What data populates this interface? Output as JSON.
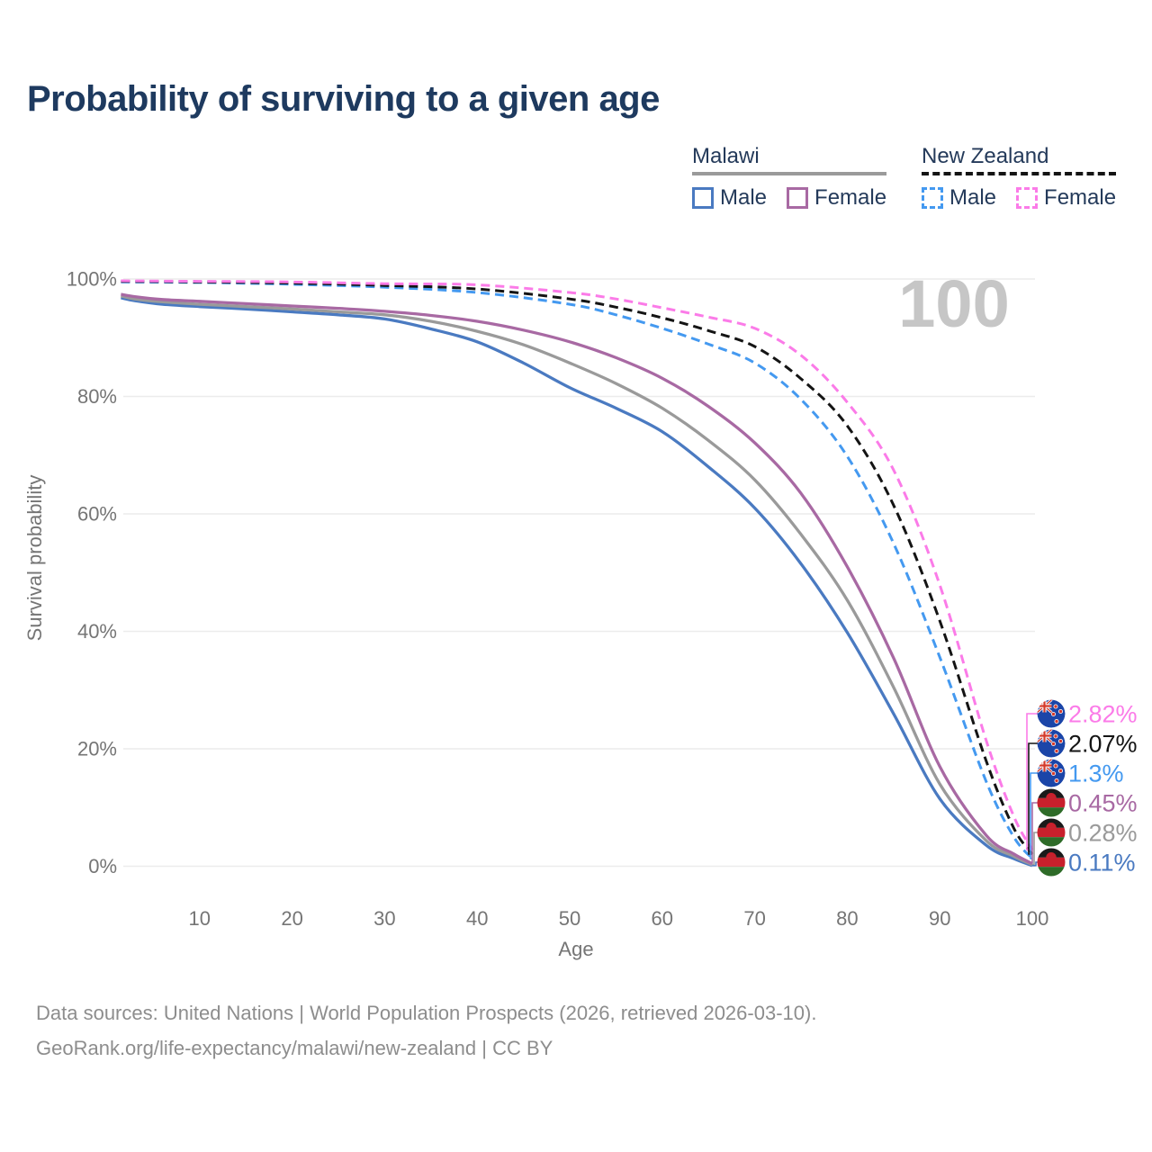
{
  "title": "Probability of surviving to a given age",
  "watermark": "100",
  "colors": {
    "title": "#1e3a5f",
    "legend_text": "#243a5a",
    "axis_text": "#757575",
    "grid": "#ececec",
    "watermark": "#c6c6c6",
    "footer_text": "#8d8d8d"
  },
  "legend": {
    "groups": [
      {
        "label": "Malawi",
        "underline": "solid",
        "underline_color": "#9a9a9a",
        "items": [
          {
            "label": "Male",
            "color": "#4a7ac1",
            "dashed": false
          },
          {
            "label": "Female",
            "color": "#a869a3",
            "dashed": false
          }
        ]
      },
      {
        "label": "New Zealand",
        "underline": "dashed",
        "underline_color": "#141414",
        "items": [
          {
            "label": "Male",
            "color": "#4499f0",
            "dashed": true
          },
          {
            "label": "Female",
            "color": "#fb7be8",
            "dashed": true
          }
        ]
      }
    ]
  },
  "chart_data": {
    "type": "line",
    "title": "Probability of surviving to a given age",
    "xlabel": "Age",
    "ylabel": "Survival probability",
    "xlim": [
      0,
      100
    ],
    "ylim": [
      0,
      100
    ],
    "grid": "horizontal",
    "legend_position": "top-right",
    "x_ticks": [
      10,
      20,
      30,
      40,
      50,
      60,
      70,
      80,
      90,
      100
    ],
    "y_ticks": [
      {
        "value": 0,
        "label": "0%"
      },
      {
        "value": 20,
        "label": "20%"
      },
      {
        "value": 40,
        "label": "40%"
      },
      {
        "value": 60,
        "label": "60%"
      },
      {
        "value": 80,
        "label": "80%"
      },
      {
        "value": 100,
        "label": "100%"
      }
    ],
    "series": [
      {
        "id": "new-zealand-female",
        "country": "New Zealand",
        "sex": "Female",
        "color": "#fb7be8",
        "dashed": true,
        "flag": "new-zealand",
        "end_label": "2.82%",
        "end_value": 2.82,
        "points": [
          [
            1.5,
            99.7
          ],
          [
            10,
            99.6
          ],
          [
            20,
            99.5
          ],
          [
            30,
            99.2
          ],
          [
            40,
            99.0
          ],
          [
            50,
            97.7
          ],
          [
            55,
            96.6
          ],
          [
            60,
            95.1
          ],
          [
            65,
            93.5
          ],
          [
            70,
            91.6
          ],
          [
            75,
            87.0
          ],
          [
            80,
            79.0
          ],
          [
            85,
            67.5
          ],
          [
            90,
            47.9
          ],
          [
            95,
            21.5
          ],
          [
            98,
            8.5
          ],
          [
            100,
            2.82
          ]
        ]
      },
      {
        "id": "new-zealand-both",
        "country": "New Zealand",
        "sex": "Both",
        "color": "#141414",
        "dashed": true,
        "flag": "new-zealand",
        "end_label": "2.07%",
        "end_value": 2.07,
        "points": [
          [
            1.5,
            99.6
          ],
          [
            10,
            99.5
          ],
          [
            20,
            99.3
          ],
          [
            30,
            98.9
          ],
          [
            40,
            98.3
          ],
          [
            50,
            96.6
          ],
          [
            55,
            95.2
          ],
          [
            60,
            93.4
          ],
          [
            65,
            91.2
          ],
          [
            70,
            88.5
          ],
          [
            75,
            83.0
          ],
          [
            80,
            75.0
          ],
          [
            85,
            61.5
          ],
          [
            90,
            41.8
          ],
          [
            95,
            18.0
          ],
          [
            98,
            6.5
          ],
          [
            100,
            2.07
          ]
        ]
      },
      {
        "id": "new-zealand-male",
        "country": "New Zealand",
        "sex": "Male",
        "color": "#4499f0",
        "dashed": true,
        "flag": "new-zealand",
        "end_label": "1.3%",
        "end_value": 1.3,
        "points": [
          [
            1.5,
            99.5
          ],
          [
            10,
            99.4
          ],
          [
            20,
            99.1
          ],
          [
            30,
            98.6
          ],
          [
            40,
            97.7
          ],
          [
            50,
            95.7
          ],
          [
            55,
            93.9
          ],
          [
            60,
            91.6
          ],
          [
            65,
            88.9
          ],
          [
            70,
            85.7
          ],
          [
            75,
            79.5
          ],
          [
            80,
            69.8
          ],
          [
            85,
            55.0
          ],
          [
            90,
            35.6
          ],
          [
            95,
            14.5
          ],
          [
            98,
            5.0
          ],
          [
            100,
            1.3
          ]
        ]
      },
      {
        "id": "malawi-female",
        "country": "Malawi",
        "sex": "Female",
        "color": "#a869a3",
        "dashed": false,
        "flag": "malawi",
        "end_label": "0.45%",
        "end_value": 0.45,
        "points": [
          [
            1.5,
            97.4
          ],
          [
            3,
            97.0
          ],
          [
            6,
            96.5
          ],
          [
            10,
            96.2
          ],
          [
            15,
            95.8
          ],
          [
            20,
            95.4
          ],
          [
            25,
            95.0
          ],
          [
            30,
            94.5
          ],
          [
            35,
            93.8
          ],
          [
            40,
            92.8
          ],
          [
            45,
            91.3
          ],
          [
            50,
            89.3
          ],
          [
            55,
            86.6
          ],
          [
            60,
            83.1
          ],
          [
            65,
            78.3
          ],
          [
            70,
            72.1
          ],
          [
            75,
            63.5
          ],
          [
            80,
            51.0
          ],
          [
            85,
            35.5
          ],
          [
            90,
            17.0
          ],
          [
            95,
            5.3
          ],
          [
            98,
            2.1
          ],
          [
            100,
            0.45
          ]
        ]
      },
      {
        "id": "malawi-both",
        "country": "Malawi",
        "sex": "Both",
        "color": "#9a9a9a",
        "dashed": false,
        "flag": "malawi",
        "end_label": "0.28%",
        "end_value": 0.28,
        "points": [
          [
            1.5,
            97.1
          ],
          [
            3,
            96.6
          ],
          [
            6,
            96.1
          ],
          [
            10,
            95.7
          ],
          [
            15,
            95.3
          ],
          [
            20,
            94.9
          ],
          [
            25,
            94.4
          ],
          [
            30,
            93.9
          ],
          [
            35,
            92.8
          ],
          [
            40,
            91.1
          ],
          [
            45,
            88.8
          ],
          [
            50,
            85.7
          ],
          [
            55,
            82.2
          ],
          [
            60,
            78.0
          ],
          [
            65,
            72.5
          ],
          [
            70,
            65.8
          ],
          [
            75,
            56.5
          ],
          [
            80,
            45.3
          ],
          [
            85,
            30.5
          ],
          [
            90,
            14.0
          ],
          [
            95,
            4.4
          ],
          [
            98,
            1.7
          ],
          [
            100,
            0.28
          ]
        ]
      },
      {
        "id": "malawi-male",
        "country": "Malawi",
        "sex": "Male",
        "color": "#4a7ac1",
        "dashed": false,
        "flag": "malawi",
        "end_label": "0.11%",
        "end_value": 0.11,
        "points": [
          [
            1.5,
            96.8
          ],
          [
            3,
            96.3
          ],
          [
            6,
            95.7
          ],
          [
            10,
            95.3
          ],
          [
            15,
            94.9
          ],
          [
            20,
            94.4
          ],
          [
            25,
            93.9
          ],
          [
            30,
            93.2
          ],
          [
            35,
            91.5
          ],
          [
            40,
            89.3
          ],
          [
            45,
            85.7
          ],
          [
            50,
            81.5
          ],
          [
            55,
            78.0
          ],
          [
            60,
            74.0
          ],
          [
            65,
            68.0
          ],
          [
            70,
            61.0
          ],
          [
            75,
            51.5
          ],
          [
            80,
            39.8
          ],
          [
            85,
            26.0
          ],
          [
            90,
            11.5
          ],
          [
            95,
            3.6
          ],
          [
            98,
            1.3
          ],
          [
            100,
            0.11
          ]
        ]
      }
    ]
  },
  "flags": {
    "new_zealand": {
      "field": "#1b45a8",
      "jack_red": "#d43a2a",
      "star": "#d43a2a"
    },
    "malawi": {
      "black": "#1a1a1a",
      "red": "#c8202c",
      "green": "#2e6b28"
    }
  },
  "footer": {
    "line1": "Data sources: United Nations | World Population Prospects (2026, retrieved 2026-03-10).",
    "line2": "GeoRank.org/life-expectancy/malawi/new-zealand | CC BY"
  }
}
